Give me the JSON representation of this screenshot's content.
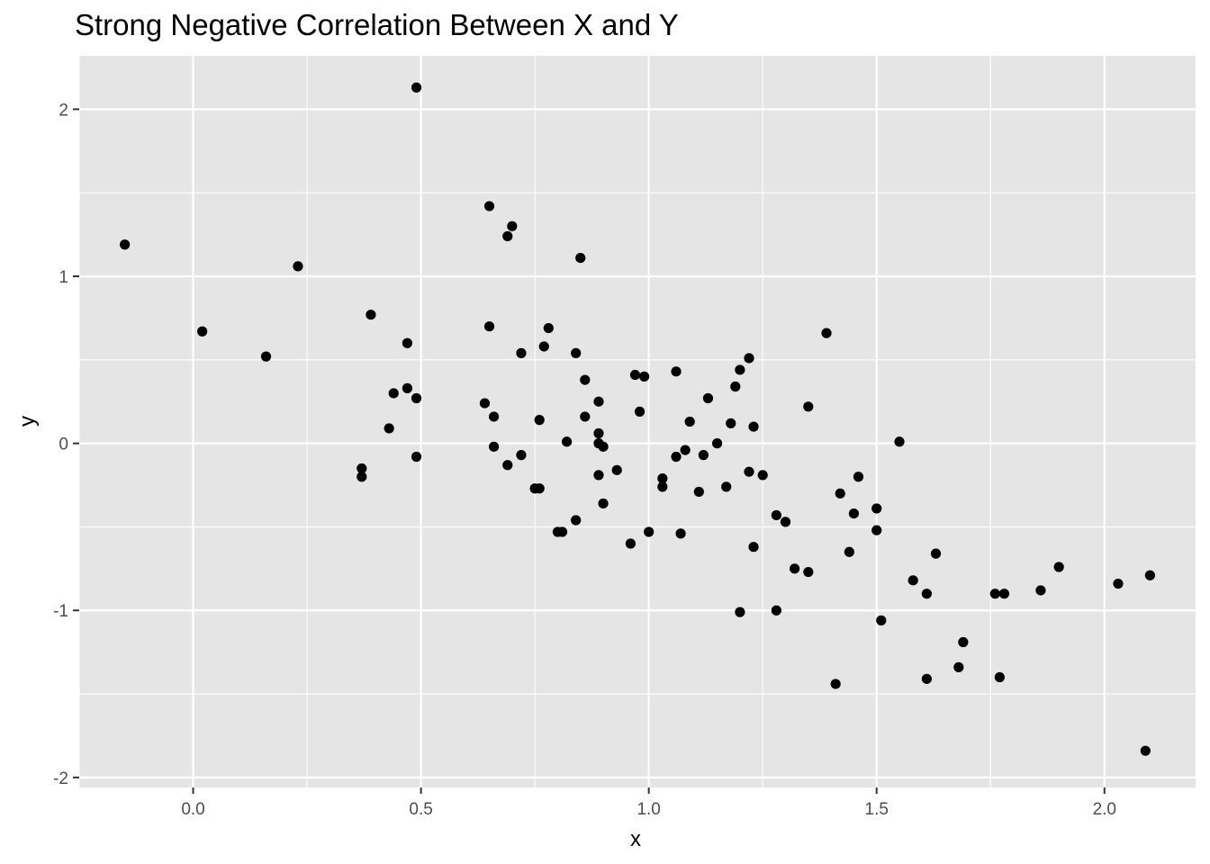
{
  "chart_data": {
    "type": "scatter",
    "title": "Strong Negative Correlation Between X and Y",
    "xlabel": "x",
    "ylabel": "y",
    "xlim": [
      -0.25,
      2.2
    ],
    "ylim": [
      -2.06,
      2.32
    ],
    "x_ticks": [
      0.0,
      0.5,
      1.0,
      1.5,
      2.0
    ],
    "x_tick_labels": [
      "0.0",
      "0.5",
      "1.0",
      "1.5",
      "2.0"
    ],
    "y_ticks": [
      -2,
      -1,
      0,
      1,
      2
    ],
    "y_tick_labels": [
      "-2",
      "-1",
      "0",
      "1",
      "2"
    ],
    "grid": true,
    "legend": "none",
    "colors": {
      "panel": "#e5e5e5",
      "grid": "#ffffff",
      "point": "#000000",
      "tick": "#333333"
    },
    "points": [
      {
        "x": -0.15,
        "y": 1.19
      },
      {
        "x": 0.02,
        "y": 0.67
      },
      {
        "x": 0.16,
        "y": 0.52
      },
      {
        "x": 0.23,
        "y": 1.06
      },
      {
        "x": 0.37,
        "y": -0.15
      },
      {
        "x": 0.37,
        "y": -0.2
      },
      {
        "x": 0.39,
        "y": 0.77
      },
      {
        "x": 0.43,
        "y": 0.09
      },
      {
        "x": 0.44,
        "y": 0.3
      },
      {
        "x": 0.47,
        "y": 0.33
      },
      {
        "x": 0.47,
        "y": 0.6
      },
      {
        "x": 0.49,
        "y": 0.27
      },
      {
        "x": 0.49,
        "y": -0.08
      },
      {
        "x": 0.49,
        "y": 2.13
      },
      {
        "x": 0.64,
        "y": 0.24
      },
      {
        "x": 0.65,
        "y": 1.42
      },
      {
        "x": 0.65,
        "y": 0.7
      },
      {
        "x": 0.66,
        "y": 0.16
      },
      {
        "x": 0.66,
        "y": -0.02
      },
      {
        "x": 0.69,
        "y": 1.24
      },
      {
        "x": 0.69,
        "y": -0.13
      },
      {
        "x": 0.7,
        "y": 1.3
      },
      {
        "x": 0.72,
        "y": 0.54
      },
      {
        "x": 0.72,
        "y": -0.07
      },
      {
        "x": 0.75,
        "y": -0.27
      },
      {
        "x": 0.76,
        "y": 0.14
      },
      {
        "x": 0.76,
        "y": -0.27
      },
      {
        "x": 0.77,
        "y": 0.58
      },
      {
        "x": 0.78,
        "y": 0.69
      },
      {
        "x": 0.8,
        "y": -0.53
      },
      {
        "x": 0.81,
        "y": -0.53
      },
      {
        "x": 0.82,
        "y": 0.01
      },
      {
        "x": 0.84,
        "y": -0.46
      },
      {
        "x": 0.84,
        "y": 0.54
      },
      {
        "x": 0.85,
        "y": 1.11
      },
      {
        "x": 0.86,
        "y": 0.38
      },
      {
        "x": 0.86,
        "y": 0.16
      },
      {
        "x": 0.89,
        "y": 0.25
      },
      {
        "x": 0.89,
        "y": -0.19
      },
      {
        "x": 0.89,
        "y": 0.06
      },
      {
        "x": 0.89,
        "y": 0.0
      },
      {
        "x": 0.9,
        "y": -0.36
      },
      {
        "x": 0.9,
        "y": -0.02
      },
      {
        "x": 0.93,
        "y": -0.16
      },
      {
        "x": 0.96,
        "y": -0.6
      },
      {
        "x": 0.97,
        "y": 0.41
      },
      {
        "x": 0.98,
        "y": 0.19
      },
      {
        "x": 0.99,
        "y": 0.4
      },
      {
        "x": 1.0,
        "y": -0.53
      },
      {
        "x": 1.03,
        "y": -0.26
      },
      {
        "x": 1.03,
        "y": -0.21
      },
      {
        "x": 1.06,
        "y": -0.08
      },
      {
        "x": 1.06,
        "y": 0.43
      },
      {
        "x": 1.07,
        "y": -0.54
      },
      {
        "x": 1.08,
        "y": -0.04
      },
      {
        "x": 1.09,
        "y": 0.13
      },
      {
        "x": 1.11,
        "y": -0.29
      },
      {
        "x": 1.12,
        "y": -0.07
      },
      {
        "x": 1.13,
        "y": 0.27
      },
      {
        "x": 1.15,
        "y": 0.0
      },
      {
        "x": 1.17,
        "y": -0.26
      },
      {
        "x": 1.18,
        "y": 0.12
      },
      {
        "x": 1.19,
        "y": 0.34
      },
      {
        "x": 1.2,
        "y": 0.44
      },
      {
        "x": 1.2,
        "y": -1.01
      },
      {
        "x": 1.22,
        "y": 0.51
      },
      {
        "x": 1.22,
        "y": -0.17
      },
      {
        "x": 1.23,
        "y": 0.1
      },
      {
        "x": 1.23,
        "y": -0.62
      },
      {
        "x": 1.25,
        "y": -0.19
      },
      {
        "x": 1.28,
        "y": -0.43
      },
      {
        "x": 1.28,
        "y": -1.0
      },
      {
        "x": 1.3,
        "y": -0.47
      },
      {
        "x": 1.32,
        "y": -0.75
      },
      {
        "x": 1.35,
        "y": 0.22
      },
      {
        "x": 1.35,
        "y": -0.77
      },
      {
        "x": 1.39,
        "y": 0.66
      },
      {
        "x": 1.41,
        "y": -1.44
      },
      {
        "x": 1.42,
        "y": -0.3
      },
      {
        "x": 1.44,
        "y": -0.65
      },
      {
        "x": 1.45,
        "y": -0.42
      },
      {
        "x": 1.46,
        "y": -0.2
      },
      {
        "x": 1.5,
        "y": -0.39
      },
      {
        "x": 1.5,
        "y": -0.52
      },
      {
        "x": 1.51,
        "y": -1.06
      },
      {
        "x": 1.55,
        "y": 0.01
      },
      {
        "x": 1.58,
        "y": -0.82
      },
      {
        "x": 1.61,
        "y": -1.41
      },
      {
        "x": 1.61,
        "y": -0.9
      },
      {
        "x": 1.63,
        "y": -0.66
      },
      {
        "x": 1.68,
        "y": -1.34
      },
      {
        "x": 1.69,
        "y": -1.19
      },
      {
        "x": 1.76,
        "y": -0.9
      },
      {
        "x": 1.77,
        "y": -1.4
      },
      {
        "x": 1.78,
        "y": -0.9
      },
      {
        "x": 1.86,
        "y": -0.88
      },
      {
        "x": 1.9,
        "y": -0.74
      },
      {
        "x": 2.03,
        "y": -0.84
      },
      {
        "x": 2.09,
        "y": -1.84
      },
      {
        "x": 2.1,
        "y": -0.79
      }
    ]
  }
}
